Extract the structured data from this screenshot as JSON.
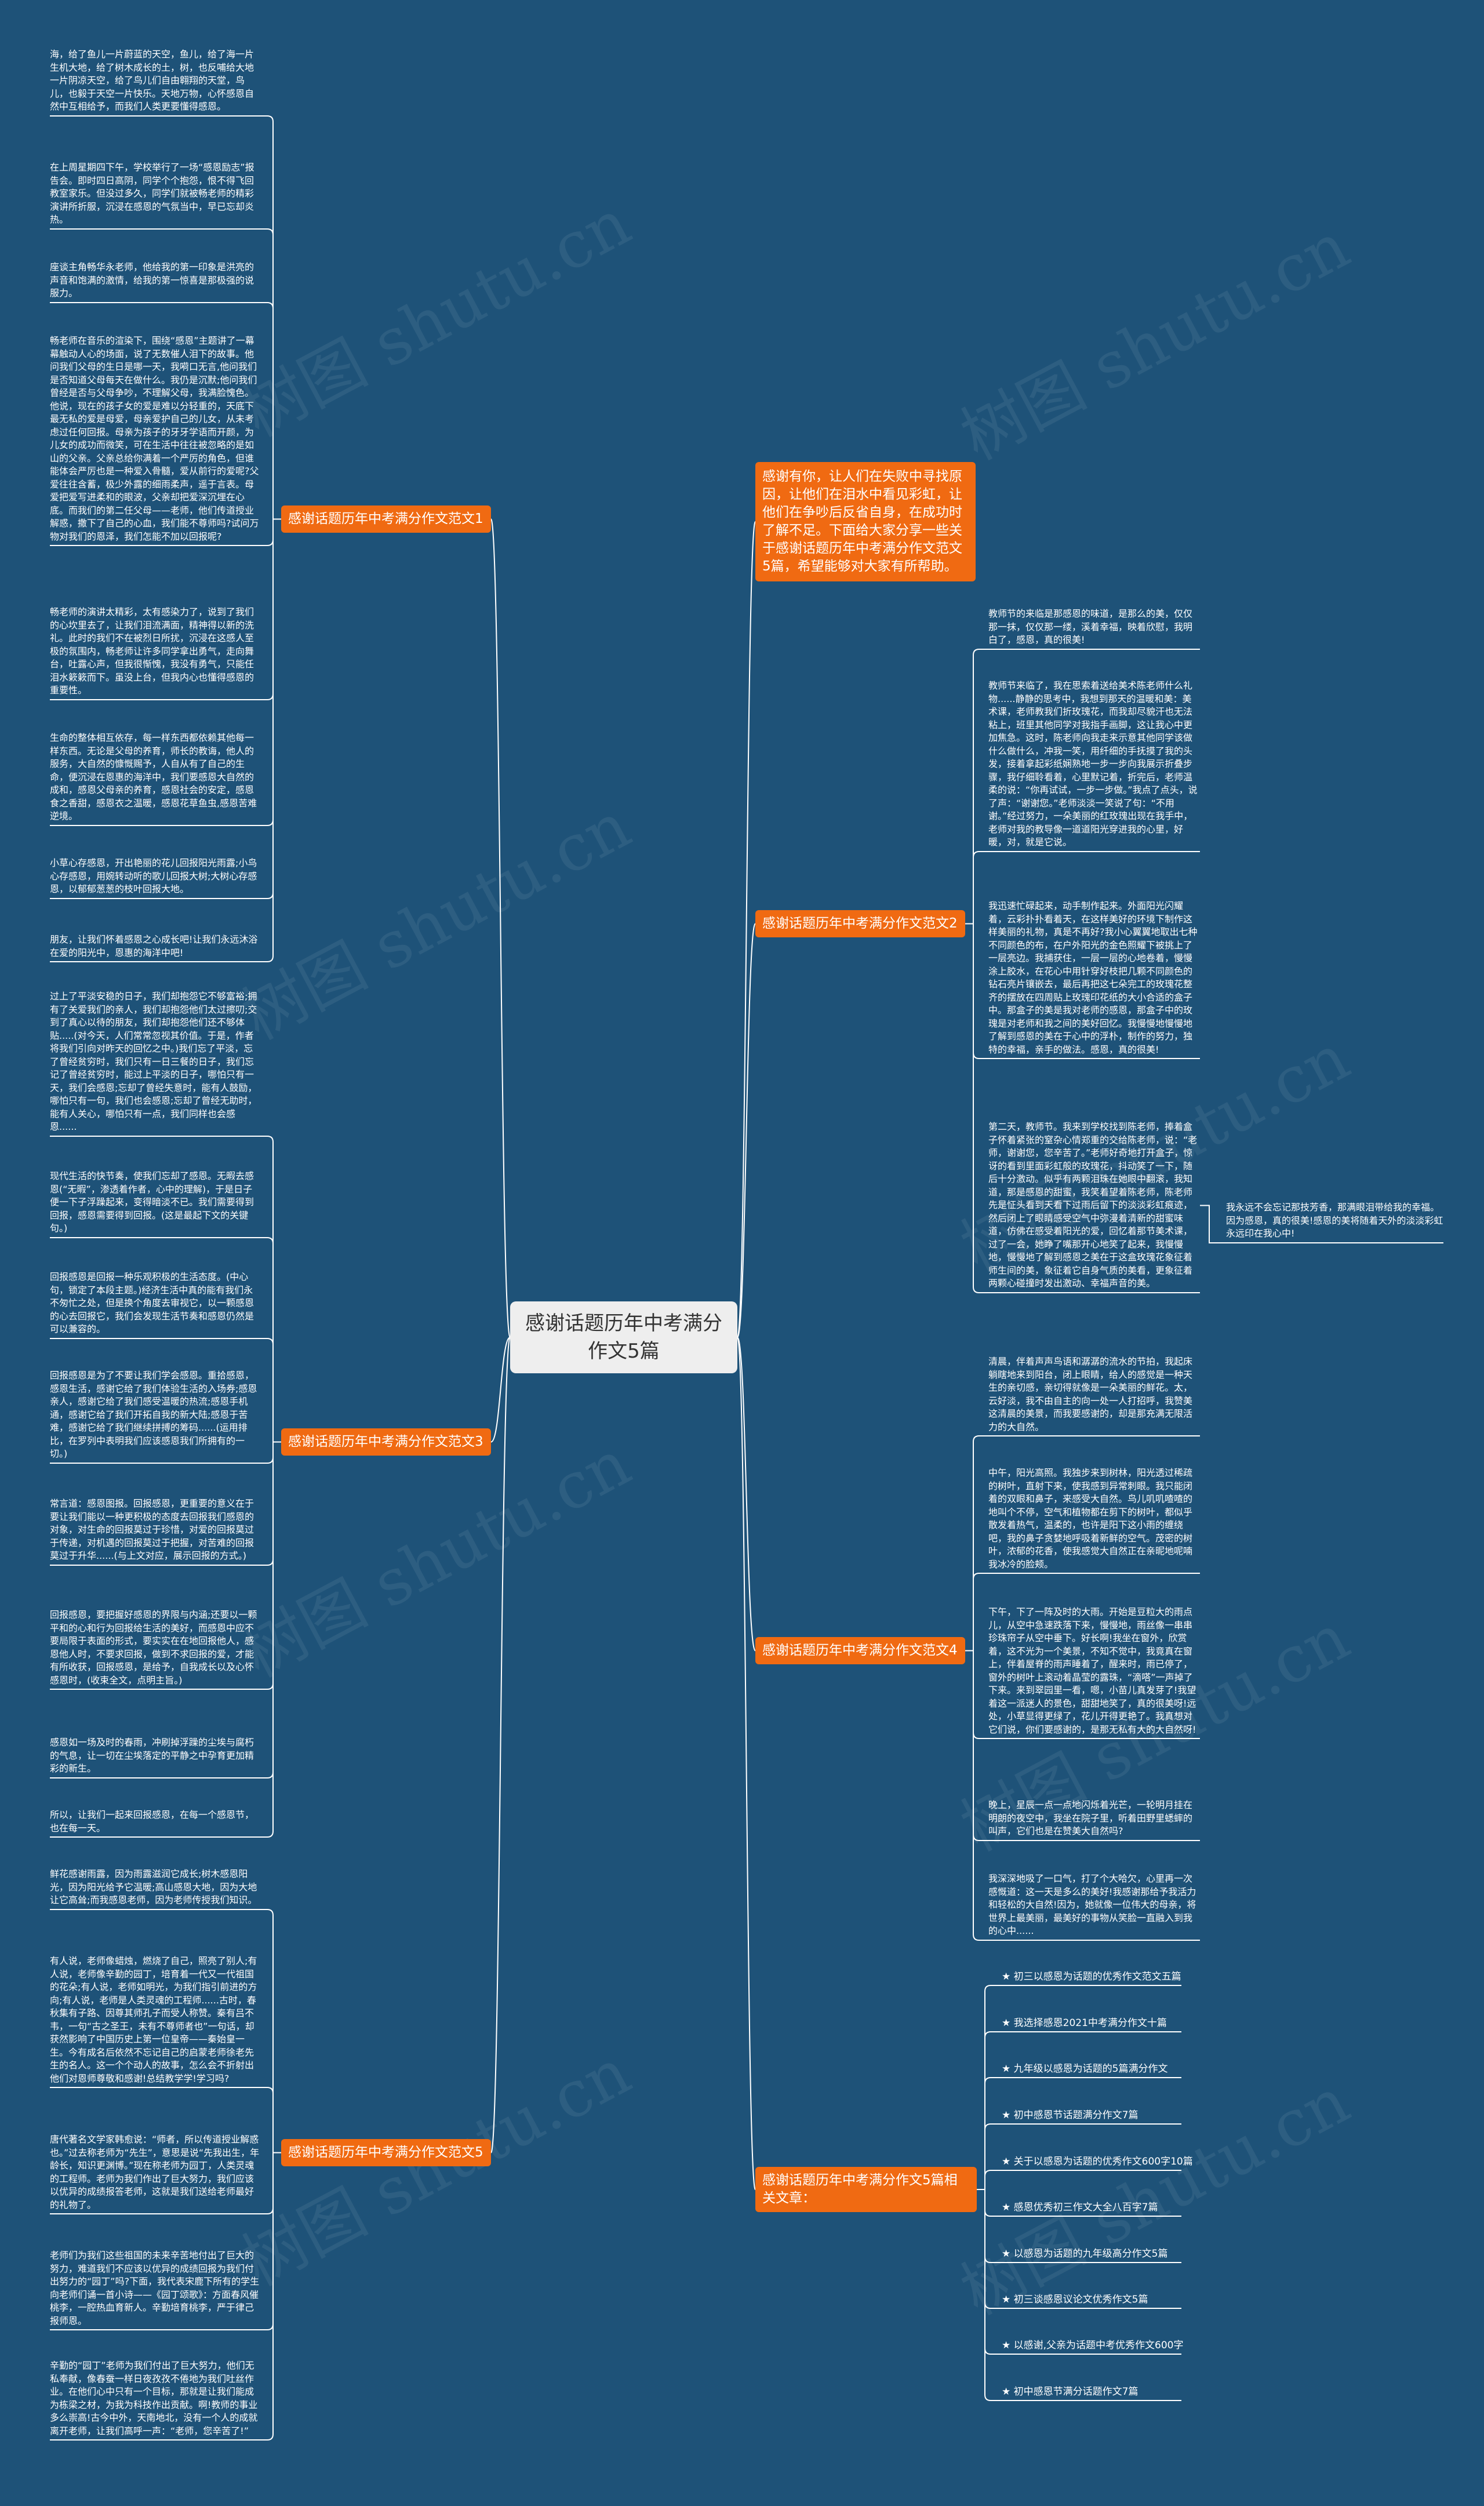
{
  "center": "感谢话题历年中考满分作文5篇",
  "intro": "感谢有你，让人们在失败中寻找原因，让他们在泪水中看见彩虹，让他们在争吵后反省自身，在成功时了解不足。下面给大家分享一些关于感谢话题历年中考满分作文范文5篇，希望能够对大家有所帮助。",
  "watermark": "树图 shutu.cn",
  "branches": [
    {
      "label": "感谢话题历年中考满分作文范文1",
      "leaves": [
        "海，给了鱼儿一片蔚蓝的天空，鱼儿，给了海一片生机大地，给了树木成长的土，树，也反哺给大地一片阴凉天空，给了鸟儿们自由翱翔的天堂，鸟儿，也毅于天空一片快乐。天地万物，心怀感恩自然中互相给予，而我们人类更要懂得感恩。",
        "在上周星期四下午，学校举行了一场“感恩励志”报告会。即时四日高阴，同学个个抱怨，恨不得飞回教室家乐。但没过多久，同学们就被畅老师的精彩演讲所折服，沉浸在感恩的气氛当中，早已忘却炎热。",
        "座谈主角畅华永老师，他给我的第一印象是洪亮的声音和饱满的激情，给我的第一惊喜是那极强的说服力。",
        "畅老师在音乐的渲染下，围绕“感恩”主题讲了一幕幕触动人心的场面，说了无数催人泪下的故事。他问我们父母的生日是哪一天，我嗬口无言,他问我们是否知道父母每天在做什么。我仍是沉默;他问我们曾经是否与父母争吵，不理解父母，我满脸愧色。他说，现在的孩子女的爱是难以分轻重的，天底下最无私的爱是母爱，母亲爱护自己的儿女，从未考虑过任何回报。母亲为孩子的牙牙学语而开颜，为儿女的成功而微笑，可在生活中往往被忽略的是如山的父亲。父亲总给你满着一个严厉的角色，但谁能体会严厉也是一种爱入骨髓，爱从前行的爱呢?父爱往往含蓄，极少外露的细雨柔声，遥于言表。母爱把爱写进柔和的眼波，父亲却把爱深沉埋在心底。而我们的第二任父母——老师，他们传道授业解惑，撒下了自己的心血，我们能不尊师吗?试问万物对我们的恩泽，我们怎能不加以回报呢?",
        "畅老师的演讲太精彩，太有感染力了，说到了我们的心坎里去了，让我们泪流满面，精神得以新的洗礼。此时的我们不在被烈日所扰，沉浸在这感人至极的氛围内，畅老师让许多同学拿出勇气，走向舞台，吐露心声，但我很惭愧，我没有勇气，只能任泪水簌簌而下。虽没上台，但我内心也懂得感恩的重要性。",
        "生命的整体相互依存，每一样东西都依赖其他每一样东西。无论是父母的养育，师长的教诲，他人的服务，大自然的慷慨赐予，人自从有了自己的生命，便沉浸在恩惠的海洋中，我们要感恩大自然的成和，感恩父母亲的养育，感恩社会的安定，感恩食之香甜，感恩衣之温暖，感恩花草鱼虫,感恩苦难逆境。",
        "小草心存感恩，开出艳丽的花儿回报阳光雨露;小鸟心存感恩，用婉转动听的歌儿回报大树;大树心存感恩，以郁郁葱葱的枝叶回报大地。",
        "朋友，让我们怀着感恩之心成长吧!让我们永远沐浴在爱的阳光中，恩惠的海洋中吧!"
      ]
    },
    {
      "label": "感谢话题历年中考满分作文范文2",
      "leaves": [
        "教师节的来临是那感恩的味道，是那么的美，仅仅那一抹，仅仅那一缕，溪着幸福，映着欣慰，我明白了，感恩，真的很美!",
        "教师节来临了，我在思索着送给美术陈老师什么礼物......静静的思考中，我想到那天的温暖和美：美术课，老师教我们折玫瑰花，而我却尽貌汗也无法粘上，班里其他同学对我指手画脚，这让我心中更加焦急。这时，陈老师向我走来示意其他同学该做什么做什么，冲我一笑，用纤细的手抚摸了我的头发，接着拿起彩纸娴熟地一步一步向我展示折叠步骤，我仔细聆看着，心里默记着，折完后，老师温柔的说：“你再试试，一步一步做。”我点了点头，说了声：“谢谢您。”老师淡淡一笑说了句：“不用谢。”经过努力，一朵美丽的红玫瑰出现在我手中，老师对我的教导像一道道阳光穿进我的心里，好暖，对，就是它说。",
        "我迅速忙碌起来，动手制作起来。外面阳光闪耀着，云彩扑扑看着天，在这样美好的环境下制作这样美丽的礼物，真是不再好?我小心翼翼地取出七种不同颜色的布，在户外阳光的金色照耀下被挑上了一层亮边。我捕获住，一层一层的心地卷着，慢慢涂上胶水，在花心中用针穿好枝把几颗不同颜色的钻石亮片镶嵌去，最后再把这七朵完工的玫瑰花整齐的摆放在四周贴上玫瑰印花纸的大小合适的盒子中。那盒子的美是我对老师的感恩，那盒子中的玫瑰是对老师和我之间的美好回忆。我慢慢地慢慢地了解到感恩的美在于心中的浮朴，制作的努力，独特的幸福，亲手的做法。感恩，真的很美!",
        "第二天，教师节。我来到学校找到陈老师，捧着盒子怀着紧张的窒杂心情郑重的交给陈老师，说：“老师，谢谢您，您辛苦了。”老师好奇地打开盒子，惊讶的看到里面彩虹般的玫瑰花，抖动笑了一下，随后十分激动。似乎有两颗泪珠在她眼中翻滚，我知道，那是感恩的甜蜜，我笑着望着陈老师，陈老师先是怔头看到天看下过雨后留下的淡淡彩虹痕迹，然后闭上了眼睛感受空气中弥漫着清新的甜蜜味道，仿佛在感受着阳光的爱，回忆着那节美术课，过了一会，她睁了嘴那开心地笑了起来，我慢慢地，慢慢地了解到感恩之美在于这盒玫瑰花象征着师生间的美，象征着它自身气质的美看，更象征着两颗心碰撞时发出激动、幸福声音的美。"
      ],
      "aside": "我永远不会忘记那技芳香，那满眼泪带给我的幸福。因为感恩，真的很美!感恩的美将随着天外的淡淡彩虹永远印在我心中!"
    },
    {
      "label": "感谢话题历年中考满分作文范文3",
      "leaves": [
        "过上了平淡安稳的日子，我们却抱怨它不够富裕;拥有了关爱我们的亲人，我们却抱怨他们太过擦叨;交到了真心以待的朋友，我们却抱怨他们还不够体贴.....(对今天，人们常常忽视其价值。于是，作者将我们引向对昨天的回忆之中。)我们忘了平淡，忘了曾经贫穷时，我们只有一日三餐的日子，我们忘记了曾经贫穷时，能过上平淡的日子，哪怕只有一天，我们会感恩;忘却了曾经失意时，能有人鼓励，哪怕只有一句，我们也会感恩;忘却了曾经无助时，能有人关心，哪怕只有一点，我们同样也会感恩......",
        "现代生活的快节奏，使我们忘却了感恩。无暇去感恩(“无暇”，渗透着作者，心中的理解)，于是日子便一下子浮躁起来，变得暗淡不已。我们需要得到回报，感恩需要得到回报。(这是最起下文的关键句。)",
        "回报感恩是回报一种乐观积极的生活态度。(中心句，锁定了本段主题。)经济生活中真的能有我们永不匆忙之处，但是换个角度去审视它，以一颗感恩的心去回报它，我们会发现生活节奏和感恩仍然是可以兼容的。",
        "回报感恩是为了不要让我们学会感恩。重拾感恩，感恩生活，感谢它给了我们体验生活的入场券;感恩亲人，感谢它给了我们感受温暖的热流;感恩手机通，感谢它给了我们开拓自我的新大陆;感恩于苦难，感谢它给了我们继续拼搏的筹码......(运用排比，在罗列中表明我们应该感恩我们所拥有的一切。)",
        "常言道：感恩图报。回报感恩，更重要的意义在于要让我们能以一种更积极的态度去回报我们感恩的对象，对生命的回报莫过于珍惜，对爱的回报莫过于传递，对机遇的回报莫过于把握，对苦难的回报莫过于升华......(与上文对应，展示回报的方式。)",
        "回报感恩，要把握好感恩的界限与内涵;还要以一颗平和的心和行为回报给生活的美好，而感恩中应不要局限于表面的形式，要实实在在地回报他人，感恩他人时，不要求回报，做到不求回报的爱，才能有所收获，回报感恩，是给予，自我成长以及心怀感恩时，(收束全文，点明主旨。)",
        "感恩如一场及时的春雨，冲刷掉浮躁的尘埃与腐朽的气息，让一切在尘埃落定的平静之中孕育更加精彩的新生。",
        "所以，让我们一起来回报感恩，在每一个感恩节，也在每一天。"
      ]
    },
    {
      "label": "感谢话题历年中考满分作文范文4",
      "leaves": [
        "清晨，伴着声声鸟语和潺潺的流水的节拍，我起床躺瞎地来到阳台，闭上眼睛，给人的感觉是一种天生的亲切感，亲切得就像是一朵美丽的鲜花。太，云好淡，我不由自主的向一处一人打招呼，我赞美这清晨的美景，而我要感谢的，却是那充满无限活力的大自然。",
        "中午，阳光高照。我独步来到树林，阳光透过稀疏的树叶，直射下来，使我感到异常刺眼。我只能闭着的双眼和鼻子，来感受大自然。鸟儿叽叽喳喳的地叫个不停，空气和植物都在剪下的树叶，都似乎散发着热气，温柔的，也许是阳下这小雨的缠绕吧，我的鼻子贪婪地呼吸着新鲜的空气。茂密的树叶，浓郁的花香，使我感觉大自然正在亲昵地呢喃我冰冷的脸颊。",
        "下午，下了一阵及时的大雨。开始是豆粒大的雨点儿，从空中急速跌落下来，慢慢地，雨丝像一串串珍珠帘子从空中垂下。好长啊!我坐在窗外，欣赏着，这不光为一个美景，不知不觉中，我竟真在窗上，伴着屋脊的雨声睡着了，醒来时，雨已停了，窗外的树叶上滚动着晶莹的露珠，“滴嗒”一声掉了下来。来到翠园里一看，嗯，小苗儿真发芽了!我望着这一派迷人的景色，甜甜地笑了，真的很美呀!远处，小草显得更绿了，花儿开得更艳了。我真想对它们说，你们要感谢的，是那无私有大的大自然呀!",
        "晚上，星辰一点一点地闪烁着光芒，一轮明月挂在明朗的夜空中，我坐在院子里，听着田野里蟋蟀的叫声，它们也是在赞美大自然吗?",
        "我深深地吸了一口气，打了个大哈欠，心里再一次感慨道：这一天是多么的美好!我感谢那给予我活力和轻松的大自然!因为，她就像一位伟大的母亲，将世界上最美丽，最美好的事物从笑脸一直融入到我的心中......"
      ]
    },
    {
      "label": "感谢话题历年中考满分作文范文5",
      "leaves": [
        "鲜花感谢雨露，因为雨露滋润它成长;树木感恩阳光，因为阳光给予它温暖;高山感恩大地，因为大地让它高耸;而我感恩老师，因为老师传授我们知识。",
        "有人说，老师像蜡烛，燃烧了自己，照亮了别人;有人说，老师像辛勤的园丁，培育着一代又一代祖国的花朵;有人说，老师如明光，为我们指引前进的方向;有人说，老师是人类灵魂的工程师......古时，春秋集有子路、因尊其师孔子而受人称赞。秦有吕不韦，一句“古之圣王，未有不尊师者也”一句话，却获然影响了中国历史上第一位皇帝——秦始皇一生。今有成名后依然不忘记自己的启蒙老师徐老先生的名人。这一个个动人的故事，怎么会不折射出他们对恩师尊敬和感谢!总结教学学!学习吗?",
        "唐代著名文学家韩愈说：“师者，所以传道授业解惑也。”过去称老师为“先生”，意思是说“先我出生，年龄长，知识更渊博。”现在称老师为园丁，人类灵魂的工程师。老师为我们作出了巨大努力，我们应该以优异的成绩报答老师，这就是我们送给老师最好的礼物了。",
        "老师们为我们这些祖国的未来辛苦地付出了巨大的努力，难道我们不应该以优异的成绩回报为我们付出努力的“园丁”吗?下面，我代表宋鹿下所有的学生向老师们诵一首小诗——《园丁颂歌》：方面春风催桃李，一腔热血育新人。辛勤培育桃李，严于律己报师恩。",
        "辛勤的“园丁”老师为我们付出了巨大努力，他们无私奉献，像春蚕一样日夜孜孜不倦地为我们吐丝作业。在他们心中只有一个目标，那就是让我们能成为栋梁之材，为我为科技作出贡献。啊!教师的事业多么崇高!古今中外，天南地北，没有一个人的成就离开老师，让我们高呼一声：“老师，您辛苦了!”"
      ]
    }
  ],
  "related": {
    "label": "感谢话题历年中考满分作文5篇相关文章：",
    "items": [
      "★ 初三以感恩为话题的优秀作文范文五篇",
      "★ 我选择感恩2021中考满分作文十篇",
      "★ 九年级以感恩为话题的5篇满分作文",
      "★ 初中感恩节话题满分作文7篇",
      "★ 关于以感恩为话题的优秀作文600字10篇",
      "★ 感恩优秀初三作文大全八百字7篇",
      "★ 以感恩为话题的九年级高分作文5篇",
      "★ 初三谈感恩议论文优秀作文5篇",
      "★ 以感谢,父亲为话题中考优秀作文600字",
      "★ 初中感恩节满分话题作文7篇"
    ]
  }
}
